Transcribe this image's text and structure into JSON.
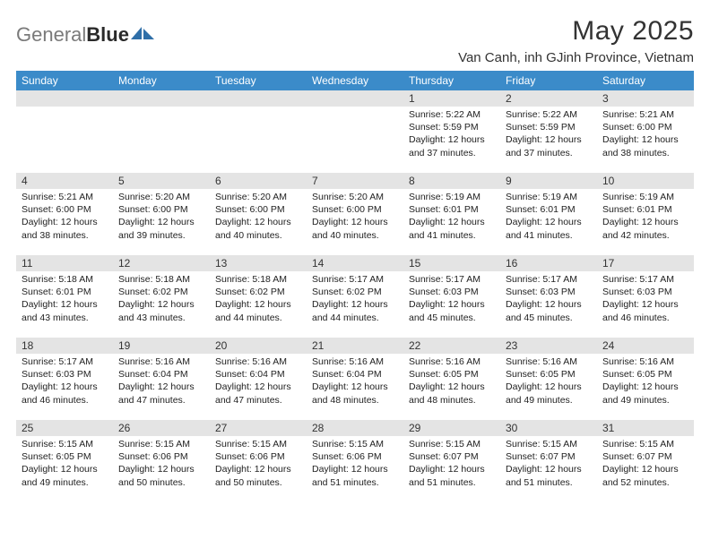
{
  "logo": {
    "word1": "General",
    "word2": "Blue"
  },
  "title": "May 2025",
  "location": "Van Canh, inh GJinh Province, Vietnam",
  "colors": {
    "header_bg": "#3b8bc9",
    "header_fg": "#ffffff",
    "daynum_bg": "#e4e4e4",
    "text": "#222222",
    "logo_gray": "#7a7a7a",
    "logo_dark": "#2a2a2a",
    "logo_blue": "#2f6fa8"
  },
  "day_headers": [
    "Sunday",
    "Monday",
    "Tuesday",
    "Wednesday",
    "Thursday",
    "Friday",
    "Saturday"
  ],
  "weeks": [
    [
      {
        "n": "",
        "lines": []
      },
      {
        "n": "",
        "lines": []
      },
      {
        "n": "",
        "lines": []
      },
      {
        "n": "",
        "lines": []
      },
      {
        "n": "1",
        "lines": [
          "Sunrise: 5:22 AM",
          "Sunset: 5:59 PM",
          "Daylight: 12 hours and 37 minutes."
        ]
      },
      {
        "n": "2",
        "lines": [
          "Sunrise: 5:22 AM",
          "Sunset: 5:59 PM",
          "Daylight: 12 hours and 37 minutes."
        ]
      },
      {
        "n": "3",
        "lines": [
          "Sunrise: 5:21 AM",
          "Sunset: 6:00 PM",
          "Daylight: 12 hours and 38 minutes."
        ]
      }
    ],
    [
      {
        "n": "4",
        "lines": [
          "Sunrise: 5:21 AM",
          "Sunset: 6:00 PM",
          "Daylight: 12 hours and 38 minutes."
        ]
      },
      {
        "n": "5",
        "lines": [
          "Sunrise: 5:20 AM",
          "Sunset: 6:00 PM",
          "Daylight: 12 hours and 39 minutes."
        ]
      },
      {
        "n": "6",
        "lines": [
          "Sunrise: 5:20 AM",
          "Sunset: 6:00 PM",
          "Daylight: 12 hours and 40 minutes."
        ]
      },
      {
        "n": "7",
        "lines": [
          "Sunrise: 5:20 AM",
          "Sunset: 6:00 PM",
          "Daylight: 12 hours and 40 minutes."
        ]
      },
      {
        "n": "8",
        "lines": [
          "Sunrise: 5:19 AM",
          "Sunset: 6:01 PM",
          "Daylight: 12 hours and 41 minutes."
        ]
      },
      {
        "n": "9",
        "lines": [
          "Sunrise: 5:19 AM",
          "Sunset: 6:01 PM",
          "Daylight: 12 hours and 41 minutes."
        ]
      },
      {
        "n": "10",
        "lines": [
          "Sunrise: 5:19 AM",
          "Sunset: 6:01 PM",
          "Daylight: 12 hours and 42 minutes."
        ]
      }
    ],
    [
      {
        "n": "11",
        "lines": [
          "Sunrise: 5:18 AM",
          "Sunset: 6:01 PM",
          "Daylight: 12 hours and 43 minutes."
        ]
      },
      {
        "n": "12",
        "lines": [
          "Sunrise: 5:18 AM",
          "Sunset: 6:02 PM",
          "Daylight: 12 hours and 43 minutes."
        ]
      },
      {
        "n": "13",
        "lines": [
          "Sunrise: 5:18 AM",
          "Sunset: 6:02 PM",
          "Daylight: 12 hours and 44 minutes."
        ]
      },
      {
        "n": "14",
        "lines": [
          "Sunrise: 5:17 AM",
          "Sunset: 6:02 PM",
          "Daylight: 12 hours and 44 minutes."
        ]
      },
      {
        "n": "15",
        "lines": [
          "Sunrise: 5:17 AM",
          "Sunset: 6:03 PM",
          "Daylight: 12 hours and 45 minutes."
        ]
      },
      {
        "n": "16",
        "lines": [
          "Sunrise: 5:17 AM",
          "Sunset: 6:03 PM",
          "Daylight: 12 hours and 45 minutes."
        ]
      },
      {
        "n": "17",
        "lines": [
          "Sunrise: 5:17 AM",
          "Sunset: 6:03 PM",
          "Daylight: 12 hours and 46 minutes."
        ]
      }
    ],
    [
      {
        "n": "18",
        "lines": [
          "Sunrise: 5:17 AM",
          "Sunset: 6:03 PM",
          "Daylight: 12 hours and 46 minutes."
        ]
      },
      {
        "n": "19",
        "lines": [
          "Sunrise: 5:16 AM",
          "Sunset: 6:04 PM",
          "Daylight: 12 hours and 47 minutes."
        ]
      },
      {
        "n": "20",
        "lines": [
          "Sunrise: 5:16 AM",
          "Sunset: 6:04 PM",
          "Daylight: 12 hours and 47 minutes."
        ]
      },
      {
        "n": "21",
        "lines": [
          "Sunrise: 5:16 AM",
          "Sunset: 6:04 PM",
          "Daylight: 12 hours and 48 minutes."
        ]
      },
      {
        "n": "22",
        "lines": [
          "Sunrise: 5:16 AM",
          "Sunset: 6:05 PM",
          "Daylight: 12 hours and 48 minutes."
        ]
      },
      {
        "n": "23",
        "lines": [
          "Sunrise: 5:16 AM",
          "Sunset: 6:05 PM",
          "Daylight: 12 hours and 49 minutes."
        ]
      },
      {
        "n": "24",
        "lines": [
          "Sunrise: 5:16 AM",
          "Sunset: 6:05 PM",
          "Daylight: 12 hours and 49 minutes."
        ]
      }
    ],
    [
      {
        "n": "25",
        "lines": [
          "Sunrise: 5:15 AM",
          "Sunset: 6:05 PM",
          "Daylight: 12 hours and 49 minutes."
        ]
      },
      {
        "n": "26",
        "lines": [
          "Sunrise: 5:15 AM",
          "Sunset: 6:06 PM",
          "Daylight: 12 hours and 50 minutes."
        ]
      },
      {
        "n": "27",
        "lines": [
          "Sunrise: 5:15 AM",
          "Sunset: 6:06 PM",
          "Daylight: 12 hours and 50 minutes."
        ]
      },
      {
        "n": "28",
        "lines": [
          "Sunrise: 5:15 AM",
          "Sunset: 6:06 PM",
          "Daylight: 12 hours and 51 minutes."
        ]
      },
      {
        "n": "29",
        "lines": [
          "Sunrise: 5:15 AM",
          "Sunset: 6:07 PM",
          "Daylight: 12 hours and 51 minutes."
        ]
      },
      {
        "n": "30",
        "lines": [
          "Sunrise: 5:15 AM",
          "Sunset: 6:07 PM",
          "Daylight: 12 hours and 51 minutes."
        ]
      },
      {
        "n": "31",
        "lines": [
          "Sunrise: 5:15 AM",
          "Sunset: 6:07 PM",
          "Daylight: 12 hours and 52 minutes."
        ]
      }
    ]
  ]
}
